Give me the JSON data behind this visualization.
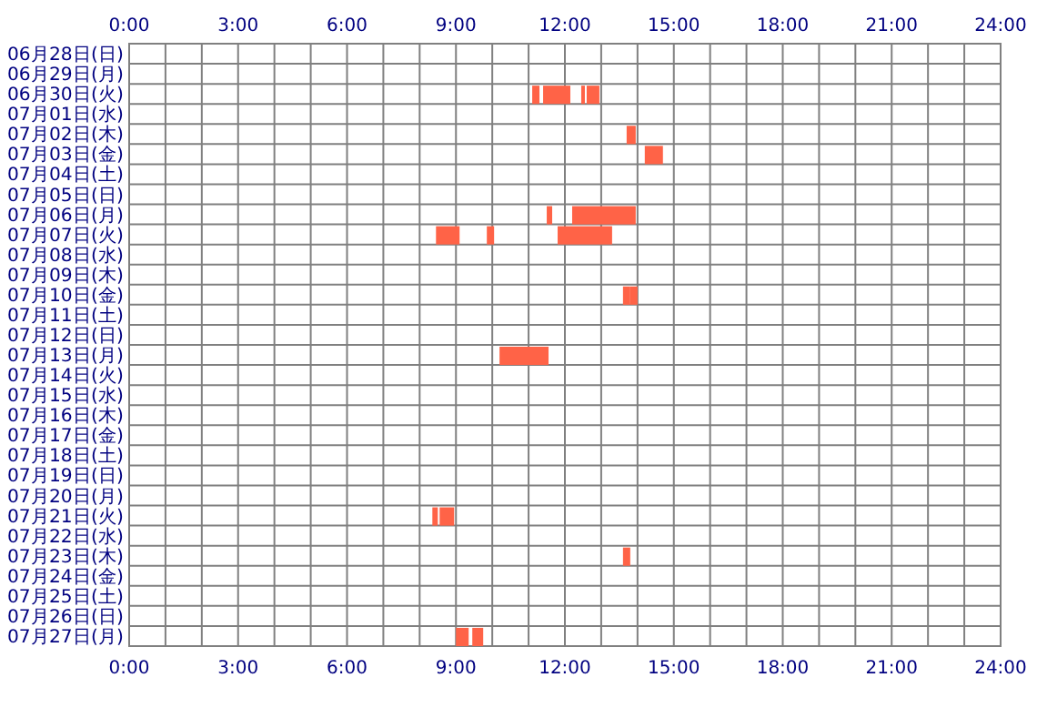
{
  "chart_data": {
    "type": "bar",
    "orientation": "horizontal",
    "grid": true,
    "categories": [
      "06月28日(日)",
      "06月29日(月)",
      "06月30日(火)",
      "07月01日(水)",
      "07月02日(木)",
      "07月03日(金)",
      "07月04日(土)",
      "07月05日(日)",
      "07月06日(月)",
      "07月07日(火)",
      "07月08日(水)",
      "07月09日(木)",
      "07月10日(金)",
      "07月11日(土)",
      "07月12日(日)",
      "07月13日(月)",
      "07月14日(火)",
      "07月15日(水)",
      "07月16日(木)",
      "07月17日(金)",
      "07月18日(土)",
      "07月19日(日)",
      "07月20日(月)",
      "07月21日(火)",
      "07月22日(水)",
      "07月23日(木)",
      "07月24日(金)",
      "07月25日(土)",
      "07月26日(日)",
      "07月27日(月)"
    ],
    "xlim": [
      0,
      24
    ],
    "xticks": [
      {
        "value": 0,
        "label": "0:00"
      },
      {
        "value": 1,
        "label": null
      },
      {
        "value": 2,
        "label": null
      },
      {
        "value": 3,
        "label": "3:00"
      },
      {
        "value": 4,
        "label": null
      },
      {
        "value": 5,
        "label": null
      },
      {
        "value": 6,
        "label": "6:00"
      },
      {
        "value": 7,
        "label": null
      },
      {
        "value": 8,
        "label": null
      },
      {
        "value": 9,
        "label": "9:00"
      },
      {
        "value": 10,
        "label": null
      },
      {
        "value": 11,
        "label": null
      },
      {
        "value": 12,
        "label": "12:00"
      },
      {
        "value": 13,
        "label": null
      },
      {
        "value": 14,
        "label": null
      },
      {
        "value": 15,
        "label": "15:00"
      },
      {
        "value": 16,
        "label": null
      },
      {
        "value": 17,
        "label": null
      },
      {
        "value": 18,
        "label": "18:00"
      },
      {
        "value": 19,
        "label": null
      },
      {
        "value": 20,
        "label": null
      },
      {
        "value": 21,
        "label": "21:00"
      },
      {
        "value": 22,
        "label": null
      },
      {
        "value": 23,
        "label": null
      },
      {
        "value": 24,
        "label": "24:00"
      }
    ],
    "x2lim": [
      0,
      24
    ],
    "x2ticks": [
      {
        "value": 0,
        "label": "0:00"
      },
      {
        "value": 3,
        "label": "3:00"
      },
      {
        "value": 6,
        "label": "6:00"
      },
      {
        "value": 9,
        "label": "9:00"
      },
      {
        "value": 12,
        "label": "12:00"
      },
      {
        "value": 15,
        "label": "15:00"
      },
      {
        "value": 18,
        "label": "18:00"
      },
      {
        "value": 21,
        "label": "21:00"
      },
      {
        "value": 24,
        "label": "24:00"
      }
    ],
    "series": [
      {
        "color": "#ff6347",
        "base": [
          null,
          null,
          11.1,
          null,
          13.7,
          14.2,
          null,
          null,
          11.5,
          8.45,
          null,
          null,
          13.6,
          null,
          null,
          10.2,
          null,
          null,
          null,
          null,
          null,
          null,
          null,
          8.35,
          null,
          13.6,
          null,
          null,
          null,
          9.0
        ],
        "values": [
          null,
          null,
          0.2,
          null,
          0.25,
          0.5,
          null,
          null,
          0.15,
          0.65,
          null,
          null,
          0.2,
          null,
          null,
          1.35,
          null,
          null,
          null,
          null,
          null,
          null,
          null,
          0.15,
          null,
          0.2,
          null,
          null,
          null,
          0.35
        ]
      },
      {
        "color": "#ff6347",
        "base": [
          null,
          null,
          11.4,
          null,
          null,
          null,
          null,
          null,
          12.2,
          9.85,
          null,
          null,
          13.8,
          null,
          null,
          null,
          null,
          null,
          null,
          null,
          null,
          null,
          null,
          8.55,
          null,
          null,
          null,
          null,
          null,
          9.45
        ],
        "values": [
          null,
          null,
          0.75,
          null,
          null,
          null,
          null,
          null,
          1.75,
          0.2,
          null,
          null,
          0.2,
          null,
          null,
          null,
          null,
          null,
          null,
          null,
          null,
          null,
          null,
          0.4,
          null,
          null,
          null,
          null,
          null,
          0.3
        ]
      },
      {
        "color": "#ff6347",
        "base": [
          null,
          null,
          12.45,
          null,
          null,
          null,
          null,
          null,
          null,
          11.8,
          null,
          null,
          null,
          null,
          null,
          null,
          null,
          null,
          null,
          null,
          null,
          null,
          null,
          null,
          null,
          null,
          null,
          null,
          null,
          null
        ],
        "values": [
          null,
          null,
          0.1,
          null,
          null,
          null,
          null,
          null,
          null,
          1.5,
          null,
          null,
          null,
          null,
          null,
          null,
          null,
          null,
          null,
          null,
          null,
          null,
          null,
          null,
          null,
          null,
          null,
          null,
          null,
          null
        ]
      },
      {
        "color": "#ff6347",
        "base": [
          null,
          null,
          12.6,
          null,
          null,
          null,
          null,
          null,
          null,
          null,
          null,
          null,
          null,
          null,
          null,
          null,
          null,
          null,
          null,
          null,
          null,
          null,
          null,
          null,
          null,
          null,
          null,
          null,
          null,
          null
        ],
        "values": [
          null,
          null,
          0.35,
          null,
          null,
          null,
          null,
          null,
          null,
          null,
          null,
          null,
          null,
          null,
          null,
          null,
          null,
          null,
          null,
          null,
          null,
          null,
          null,
          null,
          null,
          null,
          null,
          null,
          null,
          null
        ]
      }
    ]
  }
}
